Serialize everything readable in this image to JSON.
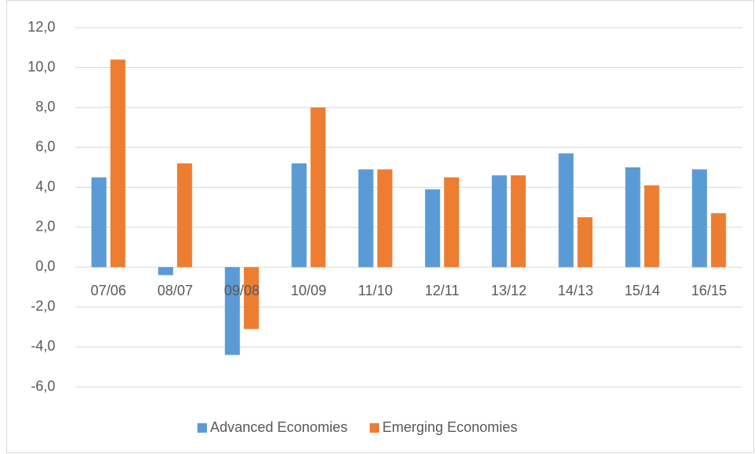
{
  "chart_data": {
    "type": "bar",
    "categories": [
      "07/06",
      "08/07",
      "09/08",
      "10/09",
      "11/10",
      "12/11",
      "13/12",
      "14/13",
      "15/14",
      "16/15"
    ],
    "series": [
      {
        "name": "Advanced Economies",
        "color": "#5b9bd5",
        "values": [
          4.5,
          -0.4,
          -4.4,
          5.2,
          4.9,
          3.9,
          4.6,
          5.7,
          5.0,
          4.9
        ]
      },
      {
        "name": "Emerging Economies",
        "color": "#ed7d31",
        "values": [
          10.4,
          5.2,
          -3.1,
          8.0,
          4.9,
          4.5,
          4.6,
          2.5,
          4.1,
          2.7
        ]
      }
    ],
    "ylim": [
      -6,
      12
    ],
    "yticks": [
      {
        "value": -6,
        "label": "-6,0"
      },
      {
        "value": -4,
        "label": "-4,0"
      },
      {
        "value": -2,
        "label": "-2,0"
      },
      {
        "value": 0,
        "label": "0,0"
      },
      {
        "value": 2,
        "label": "2,0"
      },
      {
        "value": 4,
        "label": "4,0"
      },
      {
        "value": 6,
        "label": "6,0"
      },
      {
        "value": 8,
        "label": "8,0"
      },
      {
        "value": 10,
        "label": "10,0"
      },
      {
        "value": 12,
        "label": "12,0"
      }
    ],
    "grid": true,
    "legend": "bottom"
  }
}
